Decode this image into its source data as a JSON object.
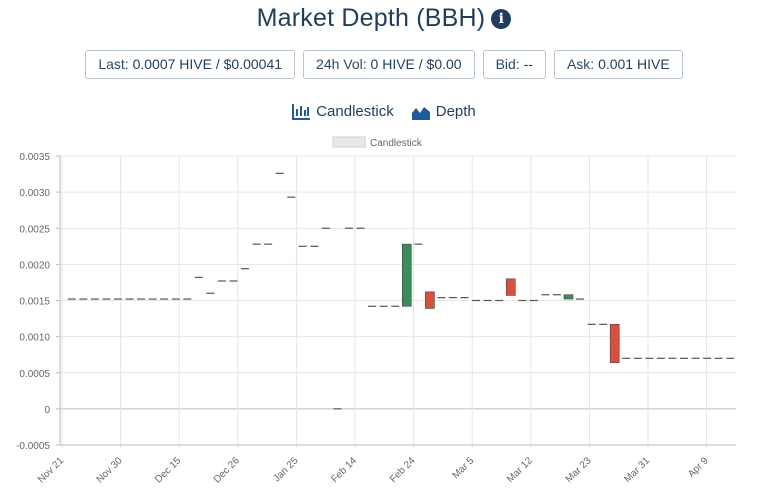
{
  "header": {
    "title": "Market Depth (BBH)",
    "info_icon": "info-circle-icon"
  },
  "stats": {
    "last_label": "Last:",
    "last_value": "0.0007 HIVE / $0.00041",
    "vol_label": "24h Vol:",
    "vol_value": "0 HIVE / $0.00",
    "bid_label": "Bid:",
    "bid_value": "--",
    "ask_label": "Ask:",
    "ask_value": "0.001 HIVE"
  },
  "toggles": {
    "candlestick_label": "Candlestick",
    "candlestick_icon": "candlestick-chart-icon",
    "depth_label": "Depth",
    "depth_icon": "area-chart-icon"
  },
  "colors": {
    "up": "#3d8a5a",
    "down": "#d9503f",
    "flat": "#555555",
    "grid": "#e6e6e6",
    "text": "#1f3d5c"
  },
  "chart_data": {
    "type": "candlestick",
    "legend": "Candlestick",
    "ylim": [
      -0.0005,
      0.0035
    ],
    "y_ticks": [
      "0.0035",
      "0.0030",
      "0.0025",
      "0.0020",
      "0.0015",
      "0.0010",
      "0.0005",
      "0",
      "-0.0005"
    ],
    "x_ticks": [
      "Nov 21",
      "Nov 30",
      "Dec 15",
      "Dec 26",
      "Jan 25",
      "Feb 14",
      "Feb 24",
      "Mar 5",
      "Mar 12",
      "Mar 23",
      "Mar 31",
      "Apr 9"
    ],
    "candles": [
      {
        "o": 0.00152,
        "c": 0.00152
      },
      {
        "o": 0.00152,
        "c": 0.00152
      },
      {
        "o": 0.00152,
        "c": 0.00152
      },
      {
        "o": 0.00152,
        "c": 0.00152
      },
      {
        "o": 0.00152,
        "c": 0.00152
      },
      {
        "o": 0.00152,
        "c": 0.00152
      },
      {
        "o": 0.00152,
        "c": 0.00152
      },
      {
        "o": 0.00152,
        "c": 0.00152
      },
      {
        "o": 0.00152,
        "c": 0.00152
      },
      {
        "o": 0.00152,
        "c": 0.00152
      },
      {
        "o": 0.00152,
        "c": 0.00152
      },
      {
        "o": 0.00182,
        "c": 0.00182
      },
      {
        "o": 0.0016,
        "c": 0.0016
      },
      {
        "o": 0.00177,
        "c": 0.00177
      },
      {
        "o": 0.00177,
        "c": 0.00177
      },
      {
        "o": 0.00194,
        "c": 0.00194
      },
      {
        "o": 0.00228,
        "c": 0.00228
      },
      {
        "o": 0.00228,
        "c": 0.00228
      },
      {
        "o": 0.00326,
        "c": 0.00326
      },
      {
        "o": 0.00293,
        "c": 0.00293
      },
      {
        "o": 0.00225,
        "c": 0.00225
      },
      {
        "o": 0.00225,
        "c": 0.00225
      },
      {
        "o": 0.0025,
        "c": 0.0025
      },
      {
        "o": 0.0,
        "c": 0.0
      },
      {
        "o": 0.0025,
        "c": 0.0025
      },
      {
        "o": 0.0025,
        "c": 0.0025
      },
      {
        "o": 0.00142,
        "c": 0.00142
      },
      {
        "o": 0.00142,
        "c": 0.00142
      },
      {
        "o": 0.00142,
        "c": 0.00142
      },
      {
        "o": 0.00142,
        "c": 0.00228
      },
      {
        "o": 0.00228,
        "c": 0.00228
      },
      {
        "o": 0.00162,
        "c": 0.00139
      },
      {
        "o": 0.00154,
        "c": 0.00154
      },
      {
        "o": 0.00154,
        "c": 0.00154
      },
      {
        "o": 0.00154,
        "c": 0.00154
      },
      {
        "o": 0.0015,
        "c": 0.0015
      },
      {
        "o": 0.0015,
        "c": 0.0015
      },
      {
        "o": 0.0015,
        "c": 0.0015
      },
      {
        "o": 0.0018,
        "c": 0.00157
      },
      {
        "o": 0.0015,
        "c": 0.0015
      },
      {
        "o": 0.0015,
        "c": 0.0015
      },
      {
        "o": 0.00158,
        "c": 0.00158
      },
      {
        "o": 0.00158,
        "c": 0.00158
      },
      {
        "o": 0.00152,
        "c": 0.00158
      },
      {
        "o": 0.00152,
        "c": 0.00152
      },
      {
        "o": 0.00117,
        "c": 0.00117
      },
      {
        "o": 0.00117,
        "c": 0.00117
      },
      {
        "o": 0.00117,
        "c": 0.00064
      },
      {
        "o": 0.0007,
        "c": 0.0007
      },
      {
        "o": 0.0007,
        "c": 0.0007
      },
      {
        "o": 0.0007,
        "c": 0.0007
      },
      {
        "o": 0.0007,
        "c": 0.0007
      },
      {
        "o": 0.0007,
        "c": 0.0007
      },
      {
        "o": 0.0007,
        "c": 0.0007
      },
      {
        "o": 0.0007,
        "c": 0.0007
      },
      {
        "o": 0.0007,
        "c": 0.0007
      },
      {
        "o": 0.0007,
        "c": 0.0007
      },
      {
        "o": 0.0007,
        "c": 0.0007
      }
    ]
  }
}
